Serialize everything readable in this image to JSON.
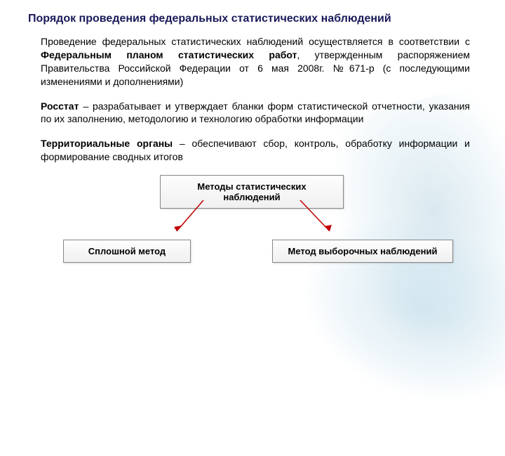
{
  "title": "Порядок проведения федеральных  статистических наблюдений",
  "paragraphs": {
    "p1_html": "Проведение федеральных статистических наблюдений осуществляется в соответствии с <b>Федеральным планом статистических работ</b>, утвержденным распоряжением Правительства Российской Федерации от 6 мая 2008г. №671-р (с последующими изменениями и дополнениями)",
    "p2_html": "<b>Росстат</b> – разрабатывает и утверждает бланки форм статистической отчетности, указания по их заполнению, методологию и технологию обработки информации",
    "p3_html": "<b>Территориальные органы</b> – обеспечивают сбор, контроль, обработку информации и формирование сводных итогов"
  },
  "diagram": {
    "top_box": "Методы статистических наблюдений",
    "left_box": "Сплошной метод",
    "right_box": "Метод выборочных наблюдений",
    "arrow_color": "#c00000",
    "box_border": "#888888",
    "box_bg_top": "#fdfdfd",
    "box_bg_bottom": "#f0f0f0"
  },
  "background": {
    "swoosh_color": "#a8cddc"
  }
}
